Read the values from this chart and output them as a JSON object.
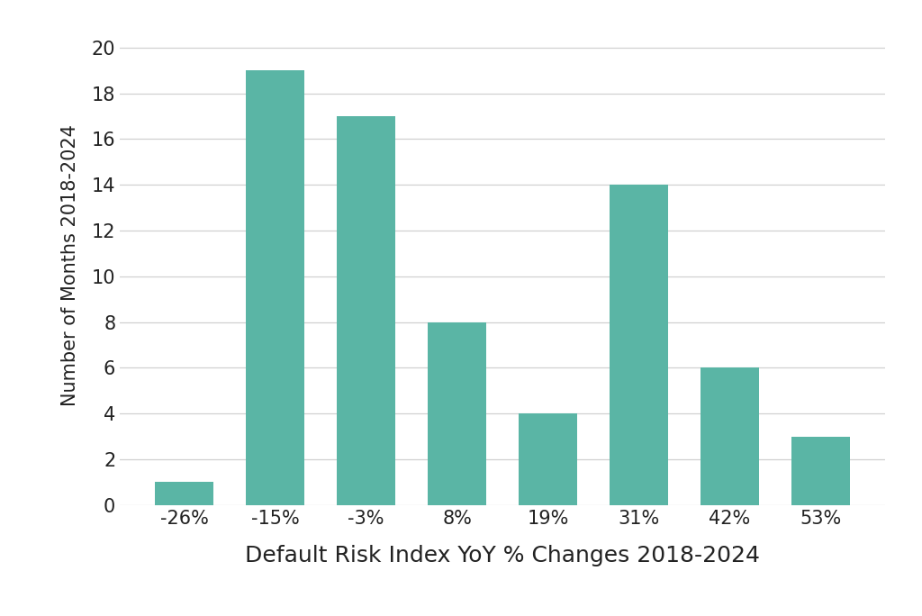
{
  "categories": [
    "-26%",
    "-15%",
    "-3%",
    "8%",
    "19%",
    "31%",
    "42%",
    "53%"
  ],
  "values": [
    1,
    19,
    17,
    8,
    4,
    14,
    6,
    3
  ],
  "bar_color": "#5ab5a5",
  "xlabel": "Default Risk Index YoY % Changes 2018-2024",
  "ylabel": "Number of Months 2018-2024",
  "ylim": [
    0,
    21
  ],
  "yticks": [
    0,
    2,
    4,
    6,
    8,
    10,
    12,
    14,
    16,
    18,
    20
  ],
  "background_color": "#ffffff",
  "grid_color": "#d0d0d0",
  "xlabel_fontsize": 18,
  "ylabel_fontsize": 15,
  "tick_fontsize": 15,
  "bar_width": 0.65
}
